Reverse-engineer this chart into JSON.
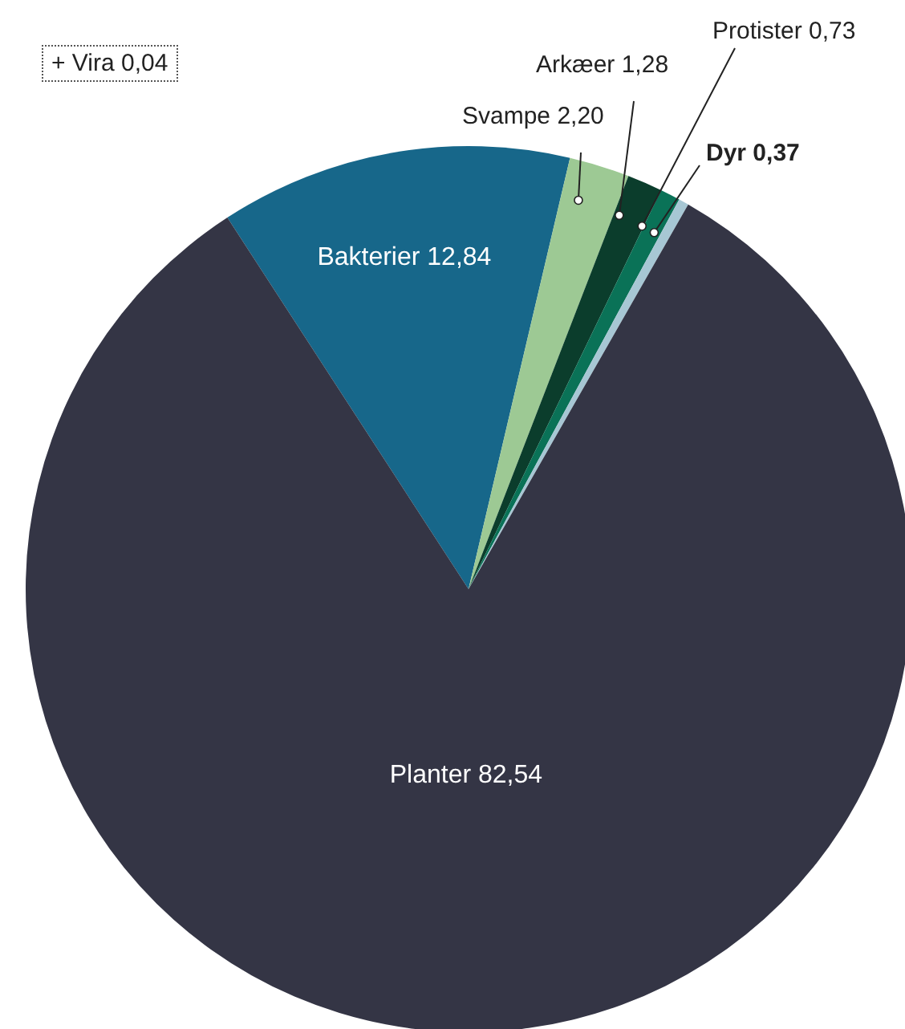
{
  "chart_data": {
    "type": "pie",
    "categories": [
      "Bakterier",
      "Svampe",
      "Arkæer",
      "Protister",
      "Dyr",
      "Planter"
    ],
    "values": [
      12.84,
      2.2,
      1.28,
      0.73,
      0.37,
      82.54
    ],
    "colors": [
      "#17678a",
      "#9dc994",
      "#0b3d2c",
      "#0a7257",
      "#a7c7d4",
      "#343545"
    ],
    "value_labels": [
      "12,84",
      "2,20",
      "1,28",
      "0,73",
      "0,37",
      "82,54"
    ],
    "annotations": [
      "+ Vira 0,04"
    ]
  }
}
